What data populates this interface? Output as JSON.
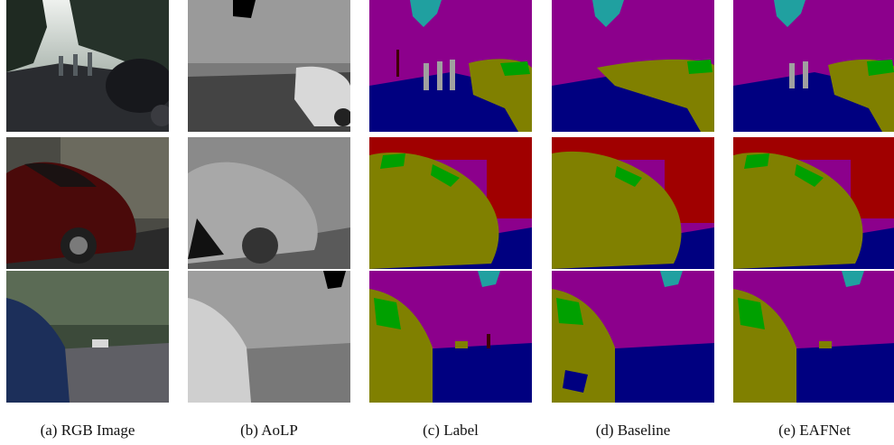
{
  "captions": {
    "rgb": "(a)  RGB Image",
    "aolp": "(b)  AoLP",
    "label": "(c)  Label",
    "baseline": "(d)  Baseline",
    "eafnet": "(e)  EAFNet"
  },
  "colors": {
    "sky": "#8c008c",
    "road": "#000080",
    "car": "#808000",
    "glass": "#00a000",
    "building": "#a00000",
    "person": "#a0a0a0",
    "vegetation": "#20a0a0",
    "pole": "#400000"
  }
}
